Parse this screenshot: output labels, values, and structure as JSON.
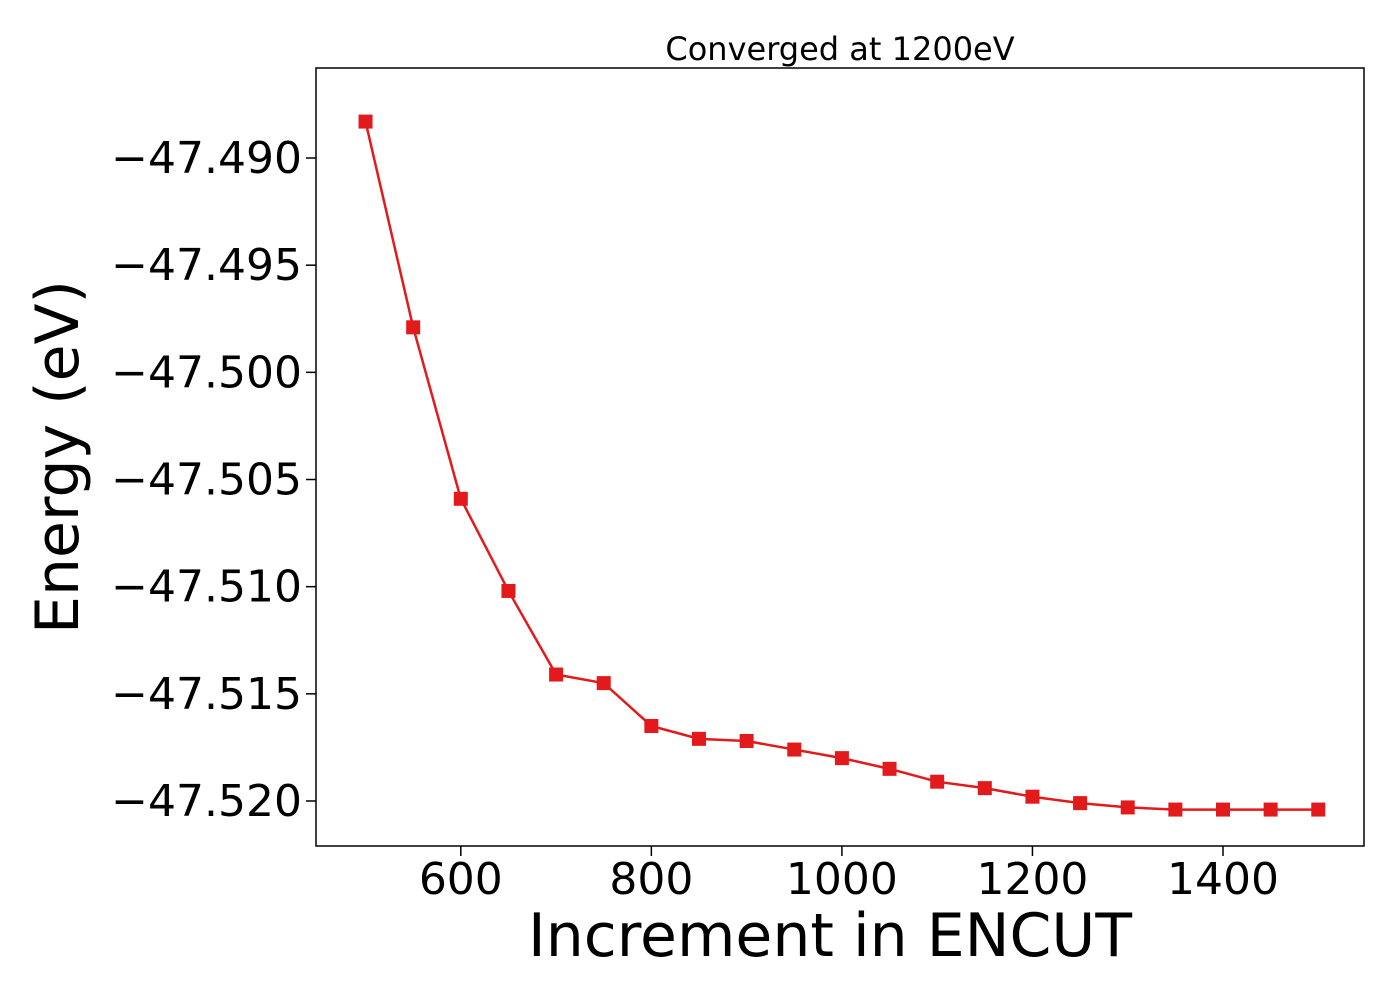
{
  "chart_data": {
    "type": "line",
    "title": "Converged at 1200eV",
    "xlabel": "Increment in ENCUT",
    "ylabel": "Energy (eV)",
    "xlim": [
      448,
      1548
    ],
    "ylim": [
      -47.5221,
      -47.4858
    ],
    "xticks": [
      600,
      800,
      1000,
      1200,
      1400
    ],
    "xtick_labels": [
      "600",
      "800",
      "1000",
      "1200",
      "1400"
    ],
    "yticks": [
      -47.49,
      -47.495,
      -47.5,
      -47.505,
      -47.51,
      -47.515,
      -47.52
    ],
    "ytick_labels": [
      "−47.490",
      "−47.495",
      "−47.500",
      "−47.505",
      "−47.510",
      "−47.515",
      "−47.520"
    ],
    "grid": false,
    "series": [
      {
        "color": "#e31a1c",
        "marker": "square",
        "x": [
          500,
          550,
          600,
          650,
          700,
          750,
          800,
          850,
          900,
          950,
          1000,
          1050,
          1100,
          1150,
          1200,
          1250,
          1300,
          1350,
          1400,
          1450,
          1500
        ],
        "y": [
          -47.4883,
          -47.4979,
          -47.5059,
          -47.5102,
          -47.5141,
          -47.5145,
          -47.5165,
          -47.5171,
          -47.5172,
          -47.5176,
          -47.518,
          -47.5185,
          -47.5191,
          -47.5194,
          -47.5198,
          -47.5201,
          -47.5203,
          -47.5204,
          -47.5204,
          -47.5204,
          -47.5204
        ]
      }
    ]
  }
}
